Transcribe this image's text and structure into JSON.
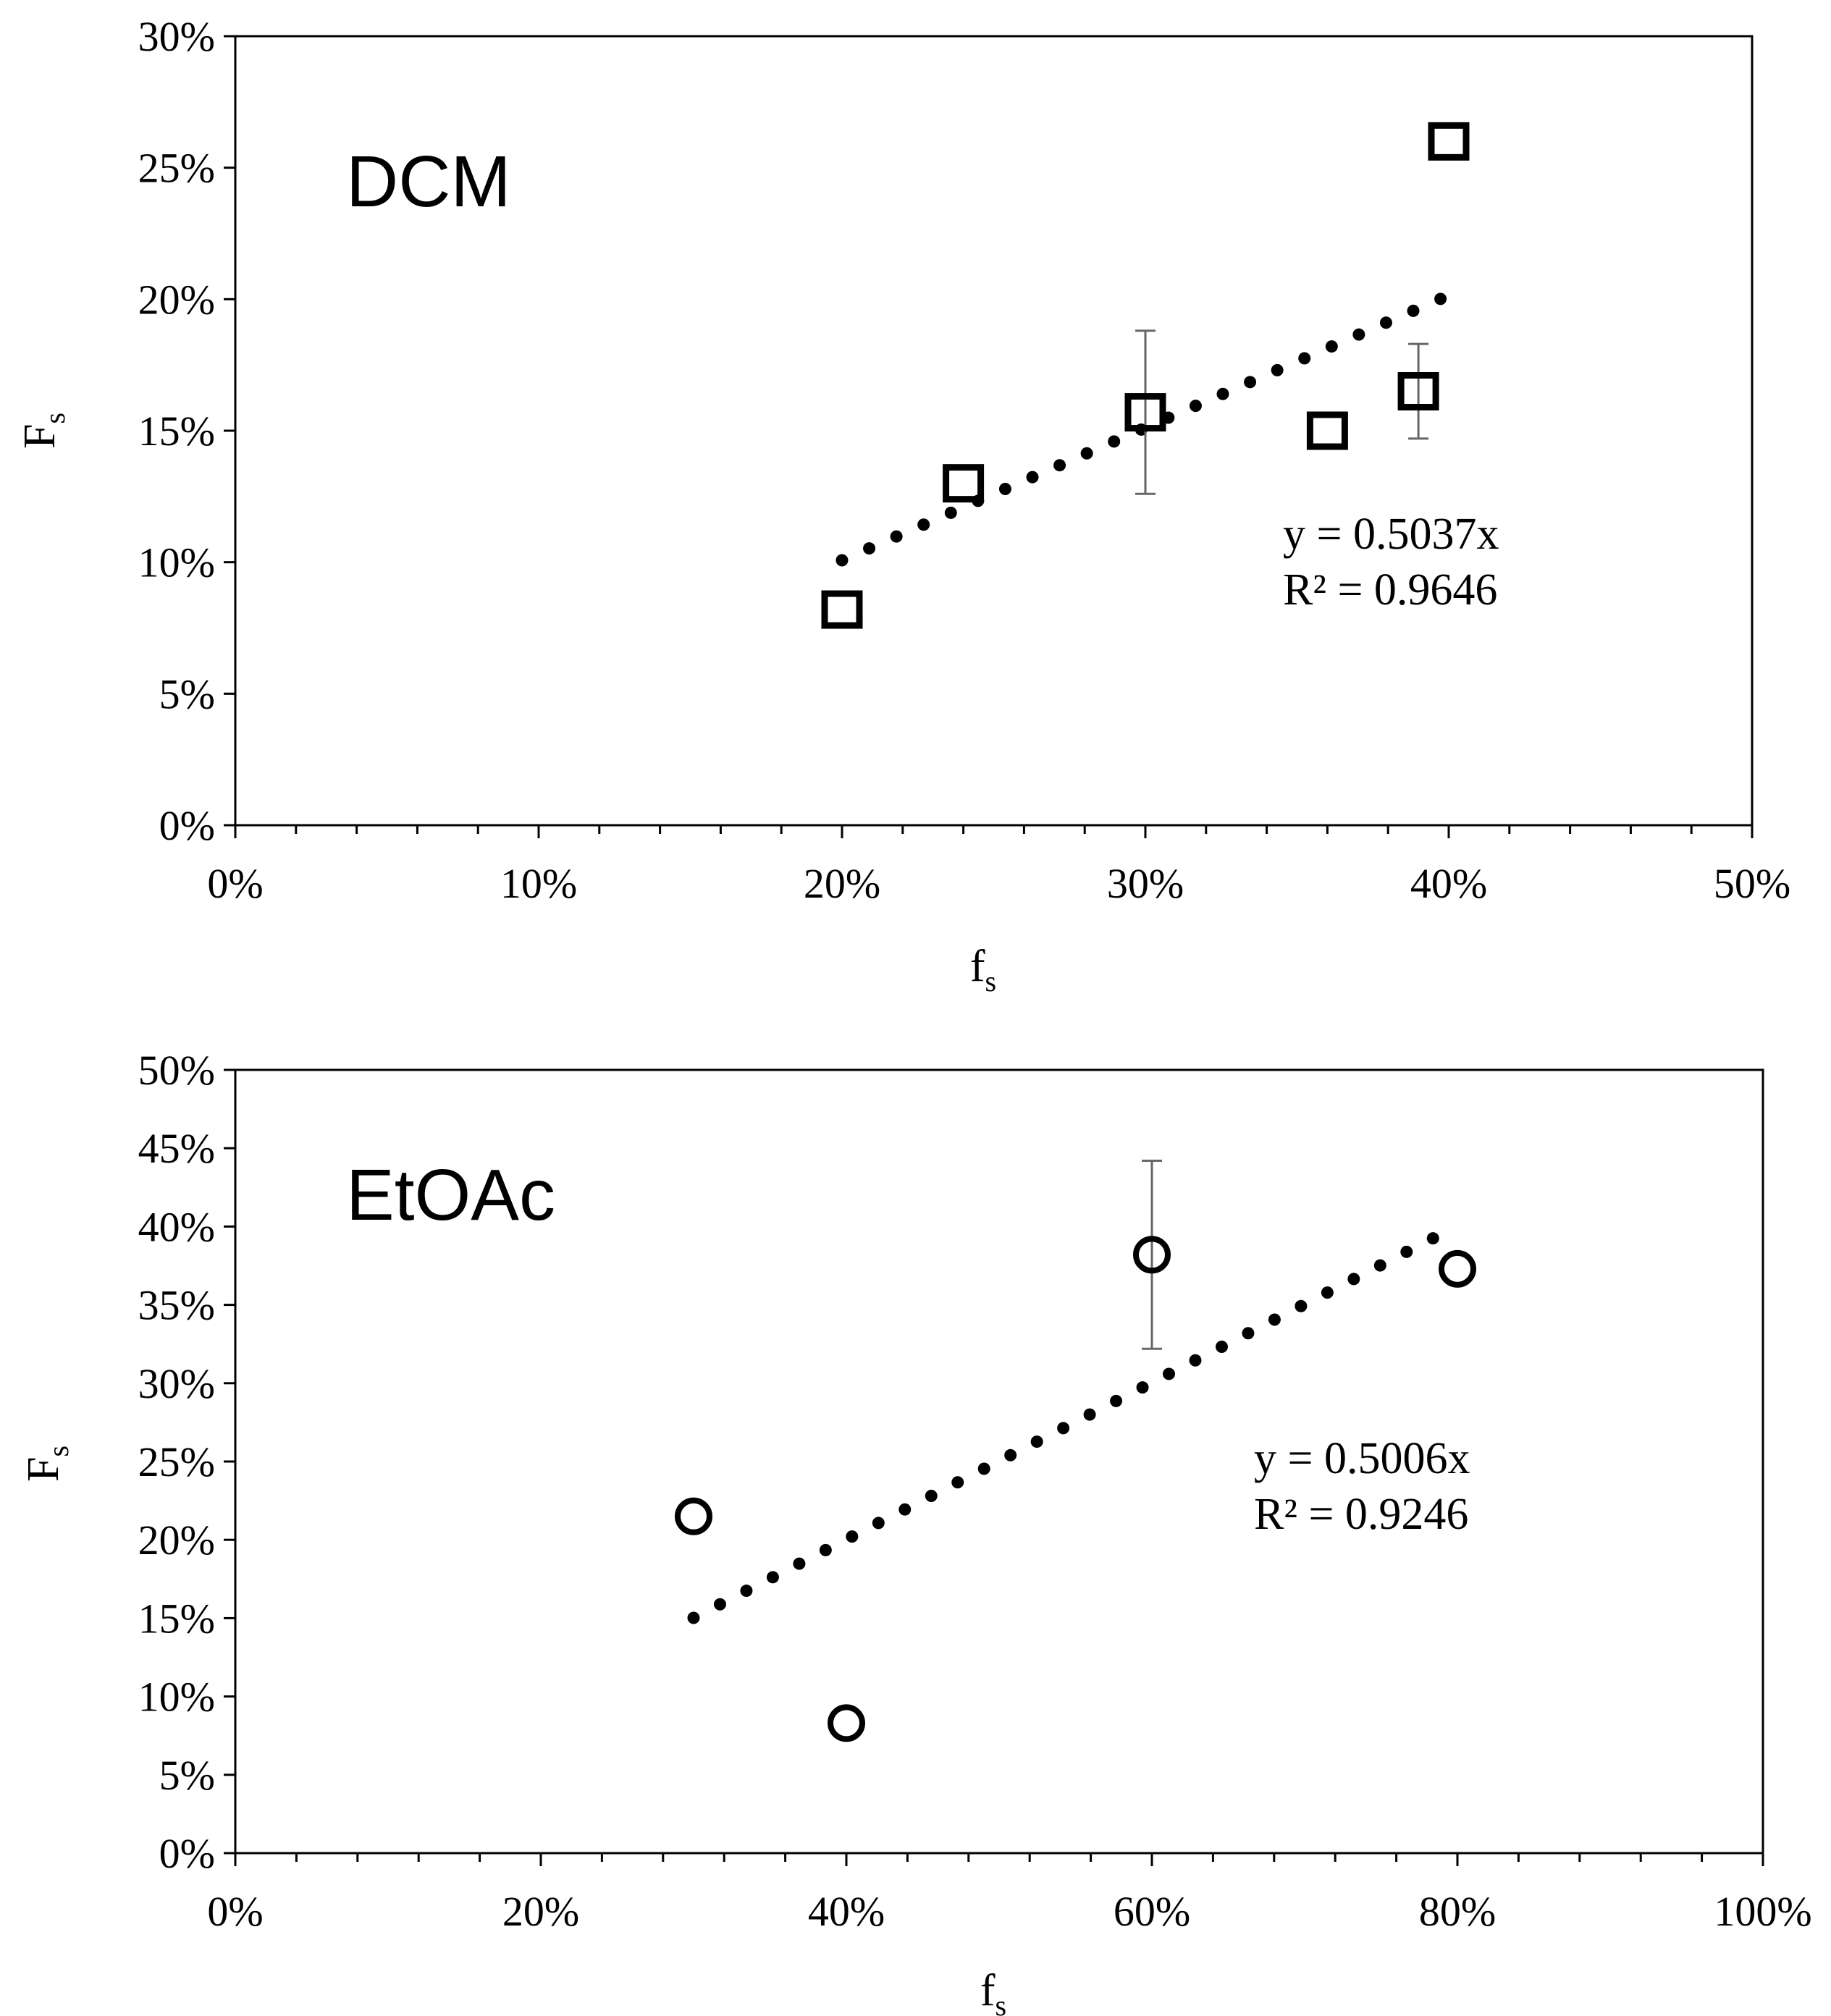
{
  "chart_data": [
    {
      "type": "scatter",
      "title": "DCM",
      "xlabel": "f",
      "xlabel_sub": "s",
      "ylabel": "F",
      "ylabel_sub": "s",
      "xlim": [
        0,
        0.5
      ],
      "ylim": [
        0,
        0.3
      ],
      "x_ticks": [
        "0%",
        "10%",
        "20%",
        "30%",
        "40%",
        "50%"
      ],
      "y_ticks": [
        "0%",
        "5%",
        "10%",
        "15%",
        "20%",
        "25%",
        "30%"
      ],
      "marker": "square",
      "points": [
        {
          "x": 0.2,
          "y": 0.082
        },
        {
          "x": 0.24,
          "y": 0.13
        },
        {
          "x": 0.3,
          "y": 0.157,
          "err": 0.031
        },
        {
          "x": 0.36,
          "y": 0.15
        },
        {
          "x": 0.39,
          "y": 0.165,
          "err": 0.018
        },
        {
          "x": 0.4,
          "y": 0.26
        }
      ],
      "trendline": {
        "slope": 0.5037,
        "x_range": [
          0.2,
          0.4
        ]
      },
      "equation": "y = 0.5037x",
      "r_squared": "R² = 0.9646"
    },
    {
      "type": "scatter",
      "title": "EtOAc",
      "xlabel": "f",
      "xlabel_sub": "s",
      "ylabel": "F",
      "ylabel_sub": "s",
      "xlim": [
        0,
        1.0
      ],
      "ylim": [
        0,
        0.5
      ],
      "x_ticks": [
        "0%",
        "20%",
        "40%",
        "60%",
        "80%",
        "100%"
      ],
      "y_ticks": [
        "0%",
        "5%",
        "10%",
        "15%",
        "20%",
        "25%",
        "30%",
        "35%",
        "40%",
        "45%",
        "50%"
      ],
      "marker": "circle",
      "points": [
        {
          "x": 0.3,
          "y": 0.215
        },
        {
          "x": 0.4,
          "y": 0.083
        },
        {
          "x": 0.6,
          "y": 0.382,
          "err": 0.06
        },
        {
          "x": 0.8,
          "y": 0.373
        }
      ],
      "trendline": {
        "slope": 0.5006,
        "x_range": [
          0.3,
          0.8
        ]
      },
      "equation": "y = 0.5006x",
      "r_squared": "R² = 0.9246"
    }
  ]
}
